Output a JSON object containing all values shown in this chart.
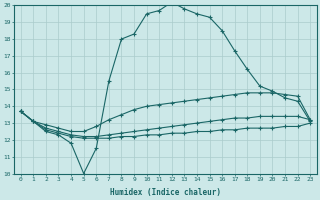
{
  "bg_color": "#cce8e8",
  "grid_color": "#aacccc",
  "line_color": "#1a6666",
  "xlabel": "Humidex (Indice chaleur)",
  "xlim": [
    -0.5,
    23.5
  ],
  "ylim": [
    10,
    20
  ],
  "xticks": [
    0,
    1,
    2,
    3,
    4,
    5,
    6,
    7,
    8,
    9,
    10,
    11,
    12,
    13,
    14,
    15,
    16,
    17,
    18,
    19,
    20,
    21,
    22,
    23
  ],
  "yticks": [
    10,
    11,
    12,
    13,
    14,
    15,
    16,
    17,
    18,
    19,
    20
  ],
  "curve_main_x": [
    0,
    1,
    2,
    3,
    4,
    5,
    6,
    7,
    8,
    9,
    10,
    11,
    12,
    13,
    14,
    15,
    16,
    17,
    18,
    19,
    20,
    21,
    22,
    23
  ],
  "curve_main_y": [
    13.7,
    13.1,
    12.5,
    12.3,
    11.8,
    10.0,
    11.5,
    15.5,
    18.0,
    18.3,
    19.5,
    19.7,
    20.2,
    19.8,
    19.5,
    19.3,
    18.5,
    17.3,
    16.2,
    15.2,
    14.9,
    14.5,
    14.3,
    13.1
  ],
  "curve_upper_x": [
    0,
    1,
    2,
    3,
    4,
    5,
    6,
    7,
    8,
    9,
    10,
    11,
    12,
    13,
    14,
    15,
    16,
    17,
    18,
    19,
    20,
    21,
    22,
    23
  ],
  "curve_upper_y": [
    13.7,
    13.1,
    12.9,
    12.7,
    12.5,
    12.5,
    12.8,
    13.2,
    13.5,
    13.8,
    14.0,
    14.1,
    14.2,
    14.3,
    14.4,
    14.5,
    14.6,
    14.7,
    14.8,
    14.8,
    14.8,
    14.7,
    14.6,
    13.2
  ],
  "curve_mid_x": [
    0,
    1,
    2,
    3,
    4,
    5,
    6,
    7,
    8,
    9,
    10,
    11,
    12,
    13,
    14,
    15,
    16,
    17,
    18,
    19,
    20,
    21,
    22,
    23
  ],
  "curve_mid_y": [
    13.7,
    13.1,
    12.7,
    12.5,
    12.3,
    12.2,
    12.2,
    12.3,
    12.4,
    12.5,
    12.6,
    12.7,
    12.8,
    12.9,
    13.0,
    13.1,
    13.2,
    13.3,
    13.3,
    13.4,
    13.4,
    13.4,
    13.4,
    13.2
  ],
  "curve_low_x": [
    0,
    1,
    2,
    3,
    4,
    5,
    6,
    7,
    8,
    9,
    10,
    11,
    12,
    13,
    14,
    15,
    16,
    17,
    18,
    19,
    20,
    21,
    22,
    23
  ],
  "curve_low_y": [
    13.7,
    13.1,
    12.6,
    12.4,
    12.2,
    12.1,
    12.1,
    12.1,
    12.2,
    12.2,
    12.3,
    12.3,
    12.4,
    12.4,
    12.5,
    12.5,
    12.6,
    12.6,
    12.7,
    12.7,
    12.7,
    12.8,
    12.8,
    13.0
  ]
}
